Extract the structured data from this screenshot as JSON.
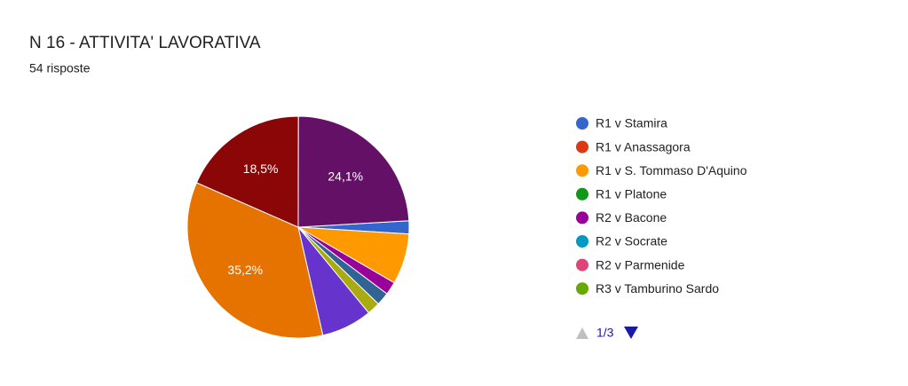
{
  "title": "N 16 - ATTIVITA' LAVORATIVA",
  "subtitle": "54 risposte",
  "chart_data": {
    "type": "pie",
    "categories": [
      "R1 v Stamira",
      "R1 v Anassagora",
      "R1 v S. Tommaso D'Aquino",
      "R1 v Platone",
      "R2 v Bacone",
      "R2 v Socrate",
      "R2 v Parmenide",
      "R3 v Tamburino Sardo",
      null,
      null,
      null,
      null,
      null,
      null,
      null,
      null,
      null
    ],
    "values": [
      1.9,
      0,
      7.4,
      0,
      1.9,
      0,
      0,
      0,
      0,
      1.9,
      0,
      0,
      1.9,
      7.4,
      35.2,
      18.5,
      24.1
    ],
    "value_labels": [
      null,
      null,
      null,
      null,
      null,
      null,
      null,
      null,
      null,
      null,
      null,
      null,
      null,
      null,
      "35,2%",
      "18,5%",
      "24,1%"
    ],
    "colors": [
      "#3366cc",
      "#dc3912",
      "#ff9900",
      "#109618",
      "#990099",
      "#0099c6",
      "#dd4477",
      "#66aa00",
      "#b82e2e",
      "#316395",
      "#994499",
      "#22aa99",
      "#aaaa11",
      "#6633cc",
      "#e67300",
      "#8b0707",
      "#651067"
    ],
    "legend_page": "1/3"
  }
}
